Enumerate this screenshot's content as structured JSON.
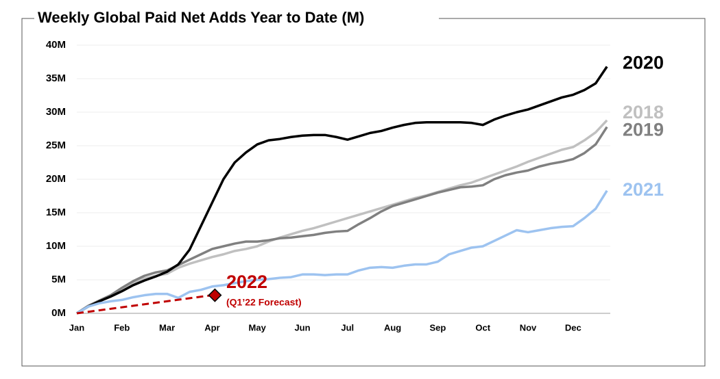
{
  "chart_data": {
    "type": "line",
    "title": "Weekly Global Paid Net Adds Year to Date (M)",
    "categories": [
      "Jan",
      null,
      null,
      null,
      "Feb",
      null,
      null,
      null,
      "Mar",
      null,
      null,
      null,
      "Apr",
      null,
      null,
      null,
      "May",
      null,
      null,
      null,
      "Jun",
      null,
      null,
      null,
      "Jul",
      null,
      null,
      null,
      "Aug",
      null,
      null,
      null,
      "Sep",
      null,
      null,
      null,
      "Oct",
      null,
      null,
      null,
      "Nov",
      null,
      null,
      null,
      "Dec",
      null,
      null,
      null
    ],
    "ylim": [
      0,
      40
    ],
    "yticks": [
      {
        "value": 0,
        "label": "0M"
      },
      {
        "value": 5,
        "label": "5M"
      },
      {
        "value": 10,
        "label": "10M"
      },
      {
        "value": 15,
        "label": "15M"
      },
      {
        "value": 20,
        "label": "20M"
      },
      {
        "value": 25,
        "label": "25M"
      },
      {
        "value": 30,
        "label": "30M"
      },
      {
        "value": 35,
        "label": "35M"
      },
      {
        "value": 40,
        "label": "40M"
      }
    ],
    "grid": true,
    "series": [
      {
        "name": "2018",
        "color": "#c0c0c0",
        "values": [
          0,
          1.0,
          1.8,
          2.6,
          3.6,
          4.5,
          5.2,
          5.6,
          5.9,
          6.8,
          7.4,
          7.9,
          8.4,
          8.8,
          9.3,
          9.6,
          10.0,
          10.7,
          11.3,
          11.8,
          12.3,
          12.7,
          13.2,
          13.7,
          14.2,
          14.7,
          15.2,
          15.7,
          16.2,
          16.7,
          17.2,
          17.6,
          18.1,
          18.6,
          19.1,
          19.5,
          20.1,
          20.7,
          21.3,
          21.9,
          22.6,
          23.2,
          23.8,
          24.4,
          24.8,
          25.8,
          27,
          28.8
        ]
      },
      {
        "name": "2019",
        "color": "#808080",
        "values": [
          0,
          1.1,
          1.9,
          2.7,
          3.8,
          4.8,
          5.6,
          6.1,
          6.4,
          7.2,
          8,
          8.8,
          9.6,
          10,
          10.4,
          10.7,
          10.7,
          10.9,
          11.2,
          11.3,
          11.5,
          11.7,
          12,
          12.2,
          12.3,
          13.3,
          14.2,
          15.2,
          16,
          16.5,
          17,
          17.5,
          18,
          18.4,
          18.8,
          18.9,
          19.1,
          20,
          20.6,
          21,
          21.3,
          21.9,
          22.3,
          22.6,
          23,
          23.9,
          25.2,
          27.8
        ]
      },
      {
        "name": "2020",
        "color": "#000000",
        "values": [
          0,
          1.0,
          1.8,
          2.5,
          3.3,
          4.2,
          4.9,
          5.5,
          6.2,
          7.3,
          9.5,
          13,
          16.5,
          20,
          22.5,
          24,
          25.2,
          25.8,
          26,
          26.3,
          26.5,
          26.6,
          26.6,
          26.3,
          25.9,
          26.4,
          26.9,
          27.2,
          27.7,
          28.1,
          28.4,
          28.5,
          28.5,
          28.5,
          28.5,
          28.4,
          28.1,
          28.9,
          29.5,
          30,
          30.4,
          31,
          31.6,
          32.2,
          32.6,
          33.3,
          34.3,
          36.8
        ]
      },
      {
        "name": "2021",
        "color": "#9dc3f0",
        "values": [
          0,
          1.0,
          1.5,
          1.8,
          2.0,
          2.4,
          2.7,
          2.9,
          2.9,
          2.3,
          3.2,
          3.5,
          4.0,
          4.2,
          4.5,
          4.8,
          5.0,
          5.1,
          5.3,
          5.4,
          5.8,
          5.8,
          5.7,
          5.8,
          5.8,
          6.4,
          6.8,
          6.9,
          6.8,
          7.1,
          7.3,
          7.3,
          7.7,
          8.8,
          9.3,
          9.8,
          10,
          10.8,
          11.6,
          12.4,
          12.1,
          12.4,
          12.7,
          12.9,
          13,
          14.2,
          15.6,
          18.3
        ]
      }
    ],
    "forecast": {
      "name": "2022",
      "note": "(Q1’22 Forecast)",
      "color": "#c00000",
      "categories": [
        "Jan",
        "Apr"
      ],
      "values": [
        0,
        2.7
      ]
    }
  }
}
